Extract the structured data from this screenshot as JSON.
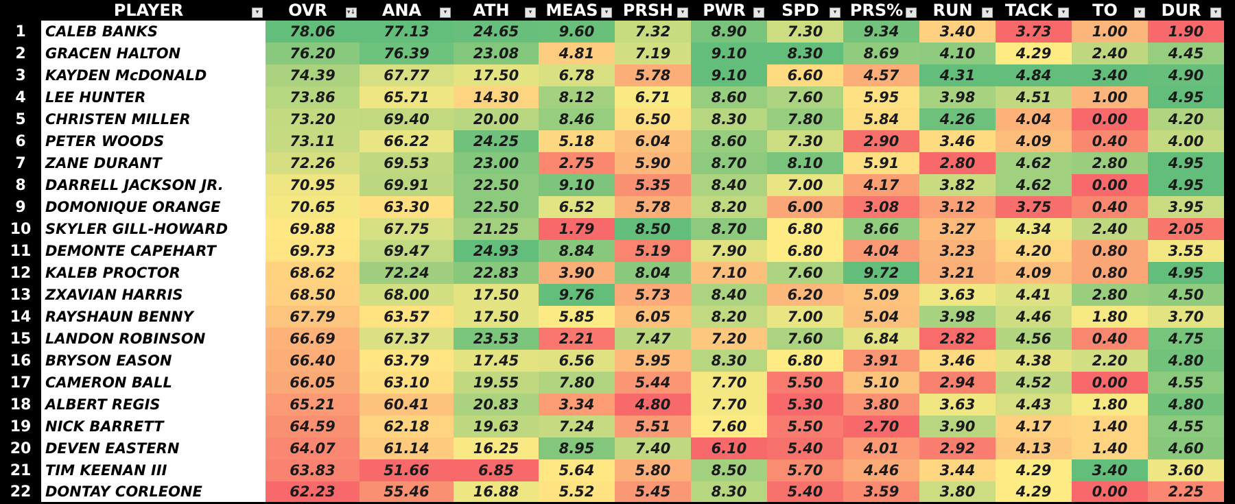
{
  "columns": [
    {
      "key": "player",
      "label": "PLAYER",
      "filter_icon": "filter-dropdown-icon"
    },
    {
      "key": "ovr",
      "label": "OVR",
      "filter_icon": "sort-descending-filter-icon"
    },
    {
      "key": "ana",
      "label": "ANA",
      "filter_icon": "filter-dropdown-icon"
    },
    {
      "key": "ath",
      "label": "ATH",
      "filter_icon": "filter-dropdown-icon"
    },
    {
      "key": "meas",
      "label": "MEAS",
      "filter_icon": "filter-dropdown-icon"
    },
    {
      "key": "prsh",
      "label": "PRSH",
      "filter_icon": "filter-dropdown-icon"
    },
    {
      "key": "pwr",
      "label": "PWR",
      "filter_icon": "filter-dropdown-icon"
    },
    {
      "key": "spd",
      "label": "SPD",
      "filter_icon": "filter-dropdown-icon"
    },
    {
      "key": "prs_pct",
      "label": "PRS%",
      "filter_icon": "filter-dropdown-icon"
    },
    {
      "key": "run",
      "label": "RUN",
      "filter_icon": "filter-dropdown-icon"
    },
    {
      "key": "tack",
      "label": "TACK",
      "filter_icon": "filter-dropdown-icon"
    },
    {
      "key": "to",
      "label": "TO",
      "filter_icon": "filter-dropdown-icon"
    },
    {
      "key": "dur",
      "label": "DUR",
      "filter_icon": "filter-dropdown-icon"
    }
  ],
  "rows": [
    {
      "rank": "1",
      "player": "CALEB BANKS",
      "values": [
        "78.06",
        "77.13",
        "24.65",
        "9.60",
        "7.32",
        "8.90",
        "7.30",
        "9.34",
        "3.40",
        "3.73",
        "1.00",
        "1.90"
      ]
    },
    {
      "rank": "2",
      "player": "GRACEN HALTON",
      "values": [
        "76.20",
        "76.39",
        "23.08",
        "4.81",
        "7.19",
        "9.10",
        "8.30",
        "8.69",
        "4.10",
        "4.29",
        "2.40",
        "4.45"
      ]
    },
    {
      "rank": "3",
      "player": "KAYDEN McDONALD",
      "values": [
        "74.39",
        "67.77",
        "17.50",
        "6.78",
        "5.78",
        "9.10",
        "6.60",
        "4.57",
        "4.31",
        "4.84",
        "3.40",
        "4.90"
      ]
    },
    {
      "rank": "4",
      "player": "LEE HUNTER",
      "values": [
        "73.86",
        "65.71",
        "14.30",
        "8.12",
        "6.71",
        "8.60",
        "7.60",
        "5.95",
        "3.98",
        "4.51",
        "1.00",
        "4.95"
      ]
    },
    {
      "rank": "5",
      "player": "CHRISTEN MILLER",
      "values": [
        "73.20",
        "69.40",
        "20.00",
        "8.46",
        "6.50",
        "8.30",
        "7.80",
        "5.84",
        "4.26",
        "4.04",
        "0.00",
        "4.20"
      ]
    },
    {
      "rank": "6",
      "player": "PETER WOODS",
      "values": [
        "73.11",
        "66.22",
        "24.25",
        "5.18",
        "6.04",
        "8.60",
        "7.30",
        "2.90",
        "3.46",
        "4.09",
        "0.40",
        "4.00"
      ]
    },
    {
      "rank": "7",
      "player": "ZANE DURANT",
      "values": [
        "72.26",
        "69.53",
        "23.00",
        "2.75",
        "5.90",
        "8.70",
        "8.10",
        "5.91",
        "2.80",
        "4.62",
        "2.80",
        "4.95"
      ]
    },
    {
      "rank": "8",
      "player": "DARRELL JACKSON JR.",
      "values": [
        "70.95",
        "69.91",
        "22.50",
        "9.10",
        "5.35",
        "8.40",
        "7.00",
        "4.17",
        "3.82",
        "4.62",
        "0.00",
        "4.95"
      ]
    },
    {
      "rank": "9",
      "player": "DOMONIQUE ORANGE",
      "values": [
        "70.65",
        "63.30",
        "22.50",
        "6.52",
        "5.78",
        "8.20",
        "6.00",
        "3.08",
        "3.12",
        "3.75",
        "0.40",
        "3.95"
      ]
    },
    {
      "rank": "10",
      "player": "SKYLER GILL-HOWARD",
      "values": [
        "69.88",
        "67.75",
        "21.25",
        "1.79",
        "8.50",
        "8.70",
        "6.80",
        "8.66",
        "3.27",
        "4.34",
        "2.40",
        "2.05"
      ]
    },
    {
      "rank": "11",
      "player": "DEMONTE CAPEHART",
      "values": [
        "69.73",
        "69.47",
        "24.93",
        "8.84",
        "5.19",
        "7.90",
        "6.80",
        "4.04",
        "3.23",
        "4.20",
        "0.80",
        "3.55"
      ]
    },
    {
      "rank": "12",
      "player": "KALEB PROCTOR",
      "values": [
        "68.62",
        "72.24",
        "22.83",
        "3.90",
        "8.04",
        "7.10",
        "7.60",
        "9.72",
        "3.21",
        "4.09",
        "0.80",
        "4.95"
      ]
    },
    {
      "rank": "13",
      "player": "ZXAVIAN HARRIS",
      "values": [
        "68.50",
        "68.00",
        "17.50",
        "9.76",
        "5.73",
        "8.40",
        "6.20",
        "5.09",
        "3.63",
        "4.41",
        "2.80",
        "4.50"
      ]
    },
    {
      "rank": "14",
      "player": "RAYSHAUN BENNY",
      "values": [
        "67.79",
        "63.57",
        "17.50",
        "5.85",
        "6.05",
        "8.20",
        "7.00",
        "5.04",
        "3.98",
        "4.46",
        "1.80",
        "3.70"
      ]
    },
    {
      "rank": "15",
      "player": "LANDON ROBINSON",
      "values": [
        "66.69",
        "67.37",
        "23.53",
        "2.21",
        "7.47",
        "7.20",
        "7.60",
        "6.84",
        "2.82",
        "4.56",
        "0.40",
        "4.75"
      ]
    },
    {
      "rank": "16",
      "player": "BRYSON EASON",
      "values": [
        "66.40",
        "63.79",
        "17.45",
        "6.56",
        "5.95",
        "8.30",
        "6.80",
        "3.91",
        "3.46",
        "4.38",
        "2.20",
        "4.80"
      ]
    },
    {
      "rank": "17",
      "player": "CAMERON BALL",
      "values": [
        "66.05",
        "63.10",
        "19.55",
        "7.80",
        "5.44",
        "7.70",
        "5.50",
        "5.10",
        "2.94",
        "4.52",
        "0.00",
        "4.55"
      ]
    },
    {
      "rank": "18",
      "player": "ALBERT REGIS",
      "values": [
        "65.21",
        "60.41",
        "20.83",
        "3.34",
        "4.80",
        "7.70",
        "5.30",
        "3.80",
        "3.63",
        "4.43",
        "1.80",
        "4.80"
      ]
    },
    {
      "rank": "19",
      "player": "NICK BARRETT",
      "values": [
        "64.59",
        "62.18",
        "19.63",
        "7.24",
        "5.51",
        "7.60",
        "5.50",
        "2.70",
        "3.90",
        "4.17",
        "1.40",
        "4.55"
      ]
    },
    {
      "rank": "20",
      "player": "DEVEN EASTERN",
      "values": [
        "64.07",
        "61.14",
        "16.25",
        "8.95",
        "7.40",
        "6.10",
        "5.40",
        "4.01",
        "2.92",
        "4.13",
        "1.40",
        "4.60"
      ]
    },
    {
      "rank": "21",
      "player": "TIM KEENAN III",
      "values": [
        "63.83",
        "51.66",
        "6.85",
        "5.64",
        "5.80",
        "8.50",
        "5.70",
        "4.46",
        "3.44",
        "4.29",
        "3.40",
        "3.60"
      ]
    },
    {
      "rank": "22",
      "player": "DONTAY CORLEONE",
      "values": [
        "62.23",
        "55.46",
        "16.88",
        "5.52",
        "5.45",
        "8.30",
        "5.40",
        "3.59",
        "3.80",
        "4.29",
        "0.00",
        "2.25"
      ]
    }
  ],
  "color_scale": {
    "low": "#f8696b",
    "mid": "#ffeb84",
    "high": "#63be7b",
    "cell_text": "#1a1a1a",
    "header_bg": "#000000",
    "header_text": "#ffffff",
    "name_bg": "#ffffff"
  }
}
